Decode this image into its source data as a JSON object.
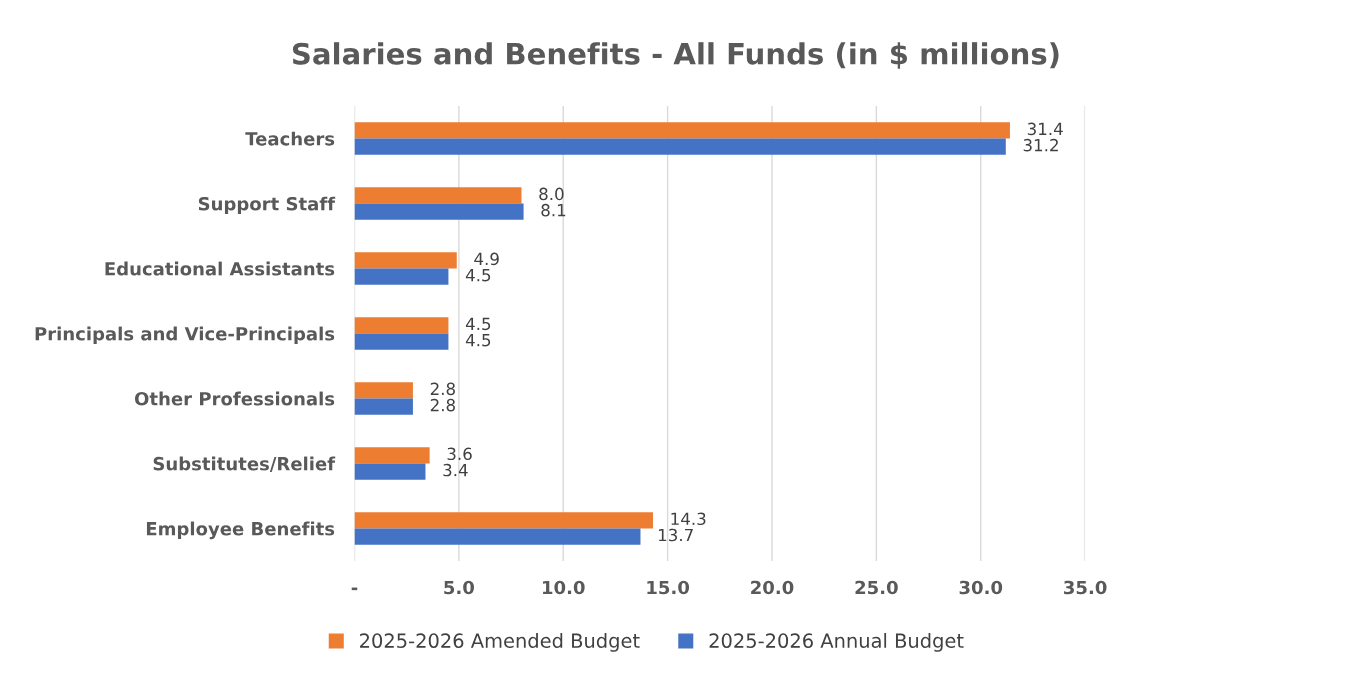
{
  "chart_data": {
    "type": "bar",
    "orientation": "horizontal",
    "title": "Salaries and Benefits - All Funds (in $ millions)",
    "categories": [
      "Teachers",
      "Support Staff",
      "Educational Assistants",
      "Principals and Vice-Principals",
      "Other Professionals",
      "Substitutes/Relief",
      "Employee Benefits"
    ],
    "series": [
      {
        "name": "2025-2026 Amended Budget",
        "color": "#ed7d31",
        "values": [
          31.4,
          8.0,
          4.9,
          4.5,
          2.8,
          3.6,
          14.3
        ],
        "value_labels": [
          "31.4",
          "8.0",
          "4.9",
          "4.5",
          "2.8",
          "3.6",
          "14.3"
        ]
      },
      {
        "name": "2025-2026 Annual Budget",
        "color": "#4472c4",
        "values": [
          31.2,
          8.1,
          4.5,
          4.5,
          2.8,
          3.4,
          13.7
        ],
        "value_labels": [
          "31.2",
          "8.1",
          "4.5",
          "4.5",
          "2.8",
          "3.4",
          "13.7"
        ]
      }
    ],
    "xlim": [
      0,
      35
    ],
    "xticks": [
      {
        "value": 0,
        "label": "-"
      },
      {
        "value": 5,
        "label": "5.0"
      },
      {
        "value": 10,
        "label": "10.0"
      },
      {
        "value": 15,
        "label": "15.0"
      },
      {
        "value": 20,
        "label": "20.0"
      },
      {
        "value": 25,
        "label": "25.0"
      },
      {
        "value": 30,
        "label": "30.0"
      },
      {
        "value": 35,
        "label": "35.0"
      }
    ],
    "grid": "x",
    "legend": "bottom"
  }
}
